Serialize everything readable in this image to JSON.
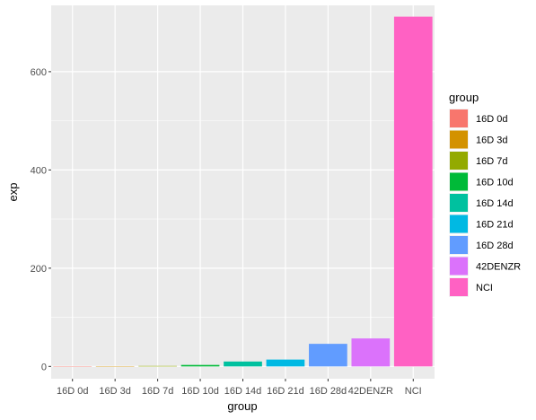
{
  "chart_data": {
    "type": "bar",
    "xlabel": "group",
    "ylabel": "exp",
    "categories": [
      "16D 0d",
      "16D 3d",
      "16D 7d",
      "16D 10d",
      "16D 14d",
      "16D 21d",
      "16D 28d",
      "42DENZR",
      "NCI"
    ],
    "values": [
      0.3,
      0.5,
      1,
      3,
      10,
      14,
      46,
      57,
      712
    ],
    "colors": [
      "#F8766D",
      "#D39200",
      "#93AA00",
      "#00BA38",
      "#00C19F",
      "#00B9E3",
      "#619CFF",
      "#DB72FB",
      "#FF61C3"
    ],
    "ylim": [
      -25,
      735
    ],
    "yticks": [
      0,
      200,
      400,
      600
    ],
    "grid": true,
    "legend": {
      "title": "group",
      "position": "right",
      "entries": [
        "16D 0d",
        "16D 3d",
        "16D 7d",
        "16D 10d",
        "16D 14d",
        "16D 21d",
        "16D 28d",
        "42DENZR",
        "NCI"
      ]
    }
  }
}
